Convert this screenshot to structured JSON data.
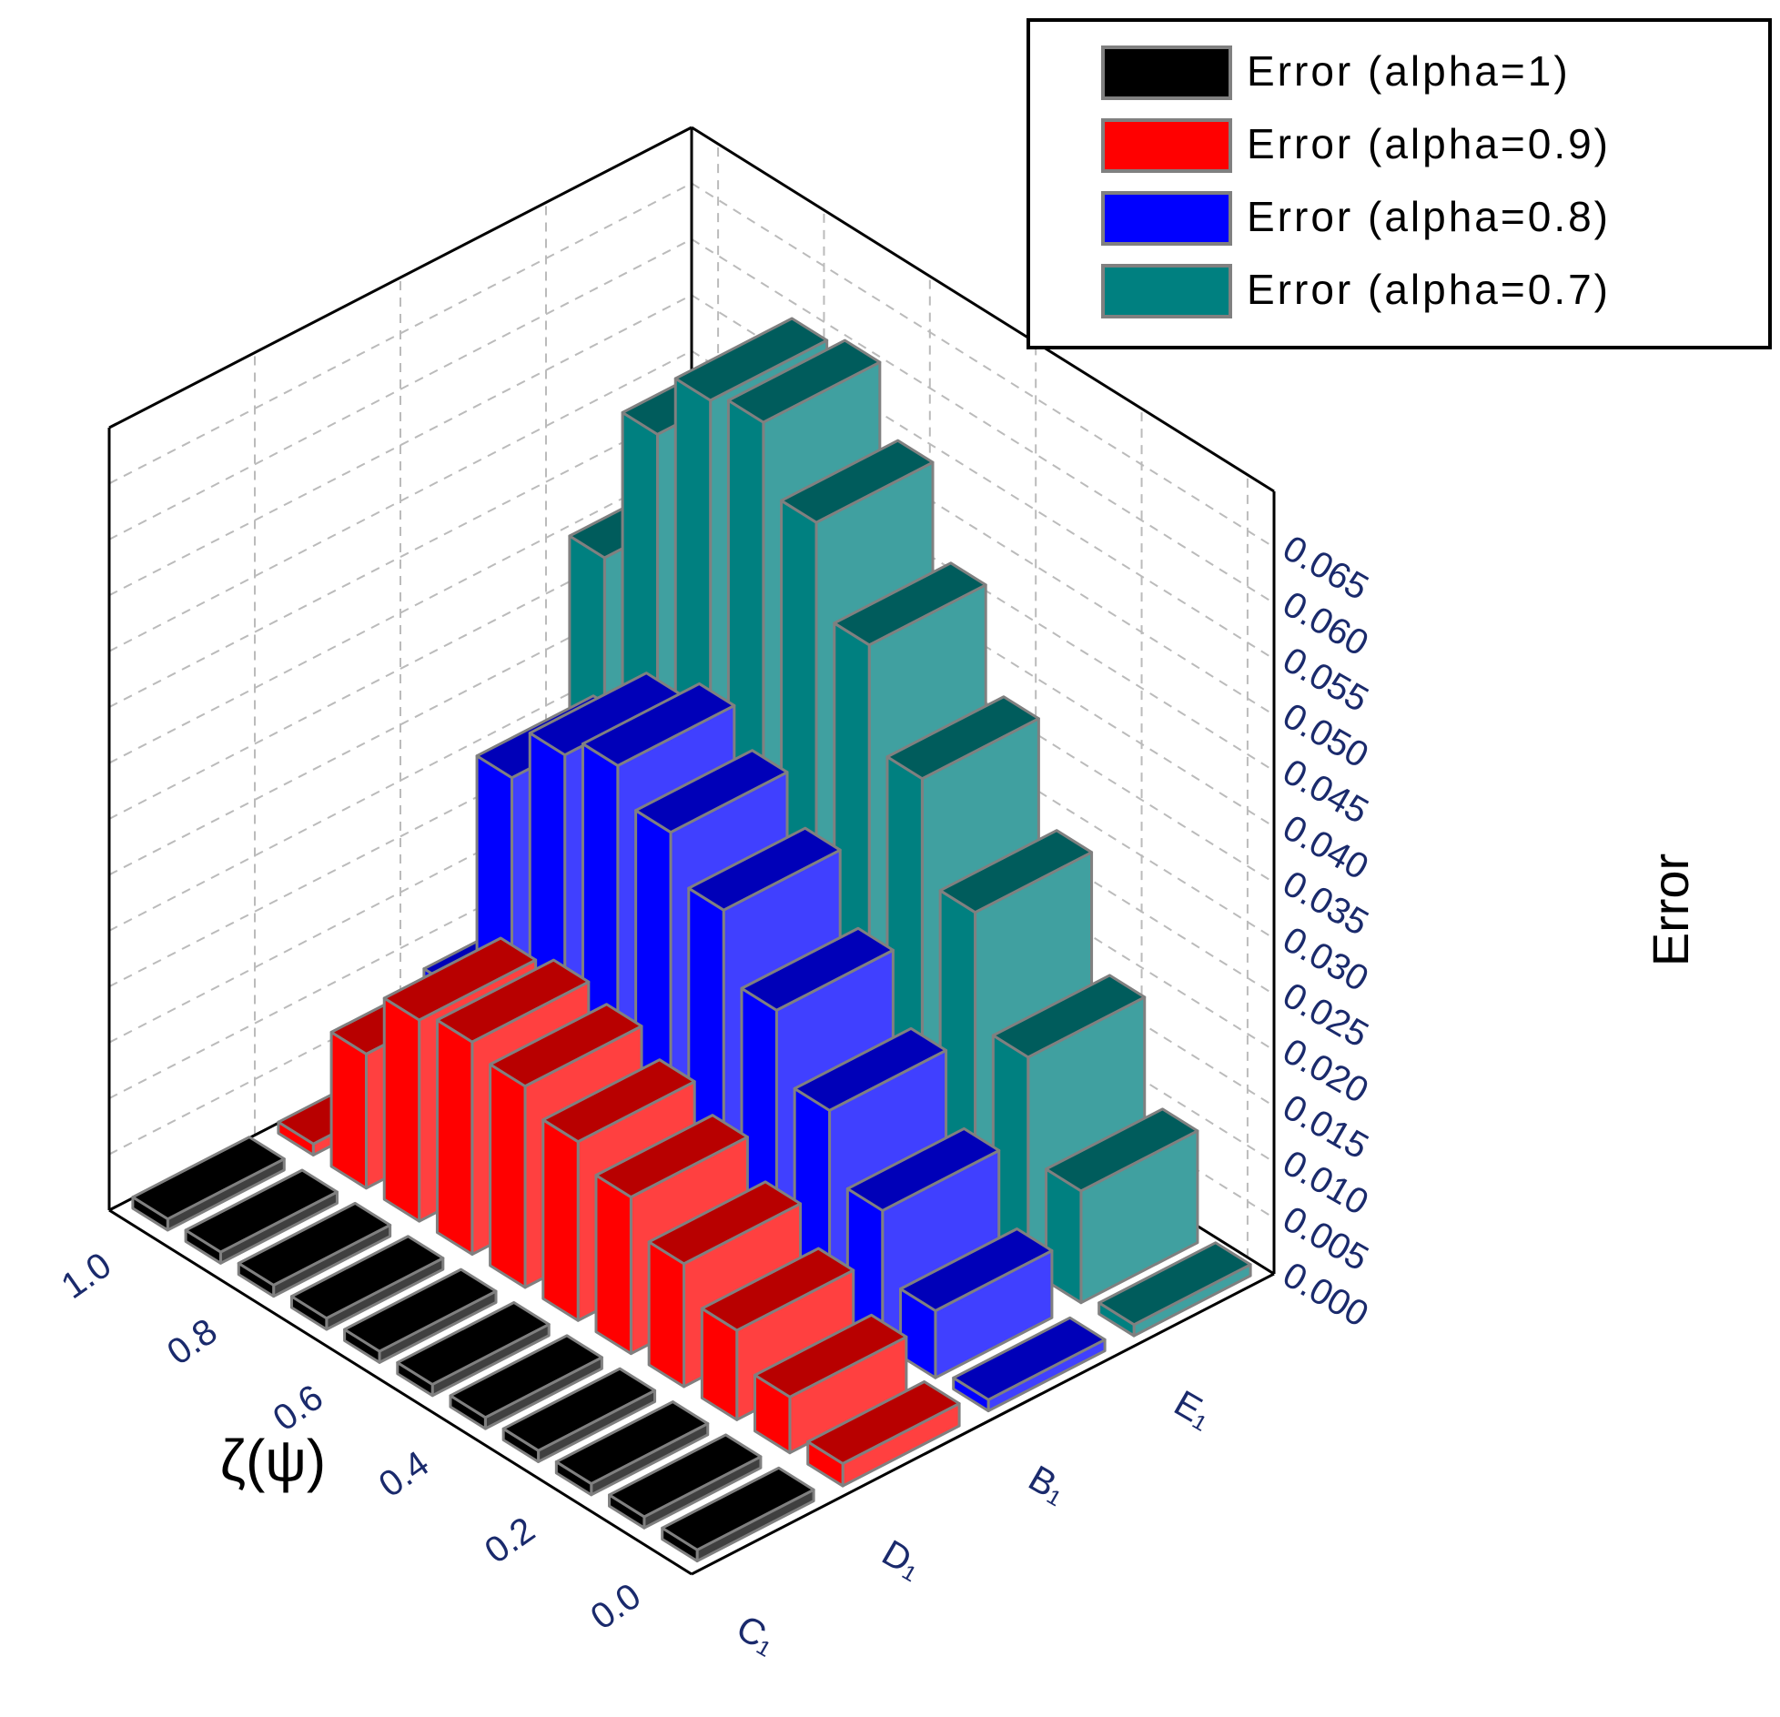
{
  "chart_data": {
    "type": "bar3d",
    "x_label": "ζ(ψ)",
    "y_label": "Error",
    "x": [
      0,
      0.1,
      0.2,
      0.3,
      0.4,
      0.5,
      0.6,
      0.7,
      0.8,
      0.9,
      1.0
    ],
    "xlim": [
      -0.05,
      1.05
    ],
    "xticks": [
      {
        "value": 0,
        "label": "0.0"
      },
      {
        "value": 0.2,
        "label": "0.2"
      },
      {
        "value": 0.4,
        "label": "0.4"
      },
      {
        "value": 0.6,
        "label": "0.6"
      },
      {
        "value": 0.8,
        "label": "0.8"
      },
      {
        "value": 1.0,
        "label": "1.0"
      }
    ],
    "categories": [
      "C₁",
      "D₁",
      "B₁",
      "E₁"
    ],
    "ylim": [
      0,
      0.07
    ],
    "yticks": [
      {
        "value": 0,
        "label": "0.000"
      },
      {
        "value": 0.005,
        "label": "0.005"
      },
      {
        "value": 0.01,
        "label": "0.010"
      },
      {
        "value": 0.015,
        "label": "0.015"
      },
      {
        "value": 0.02,
        "label": "0.020"
      },
      {
        "value": 0.025,
        "label": "0.025"
      },
      {
        "value": 0.03,
        "label": "0.030"
      },
      {
        "value": 0.035,
        "label": "0.035"
      },
      {
        "value": 0.04,
        "label": "0.040"
      },
      {
        "value": 0.045,
        "label": "0.045"
      },
      {
        "value": 0.05,
        "label": "0.050"
      },
      {
        "value": 0.055,
        "label": "0.055"
      },
      {
        "value": 0.06,
        "label": "0.060"
      },
      {
        "value": 0.065,
        "label": "0.065"
      }
    ],
    "grid": true,
    "legend": "upper right",
    "series": [
      {
        "name": "Error (alpha=1)",
        "color": "#000000",
        "values": [
          0.001,
          0.001,
          0.001,
          0.001,
          0.001,
          0.001,
          0.001,
          0.001,
          0.001,
          0.001,
          0.001
        ]
      },
      {
        "name": "Error (alpha=0.9)",
        "color": "#ff0000",
        "values": [
          0.002,
          0.005,
          0.008,
          0.011,
          0.014,
          0.016,
          0.018,
          0.019,
          0.018,
          0.012,
          0.001
        ]
      },
      {
        "name": "Error (alpha=0.8)",
        "color": "#0000ff",
        "values": [
          0.001,
          0.006,
          0.012,
          0.018,
          0.024,
          0.03,
          0.034,
          0.037,
          0.035,
          0.03,
          0.008
        ]
      },
      {
        "name": "Error (alpha=0.7)",
        "color": "#008080",
        "values": [
          0.001,
          0.01,
          0.019,
          0.029,
          0.038,
          0.047,
          0.055,
          0.061,
          0.06,
          0.054,
          0.04
        ]
      }
    ]
  }
}
